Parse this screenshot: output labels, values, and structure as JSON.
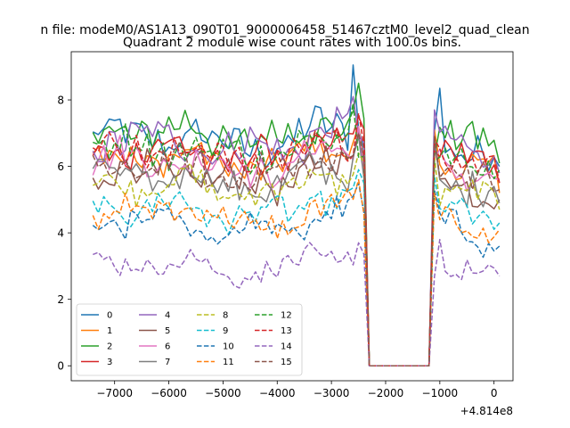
{
  "figure": {
    "suptitle": "n file: modeM0/AS1A13_090T01_9000006458_51467cztM0_level2_quad_clean"
  },
  "chart_data": {
    "type": "line",
    "title": "Quadrant 2 module wise count rates with 100.0s bins.",
    "xlabel": "",
    "ylabel": "",
    "x_offset_label": "+4.814e8",
    "xlim": [
      -7800,
      350
    ],
    "ylim": [
      -0.45,
      9.45
    ],
    "x_ticks": [
      -7000,
      -6000,
      -5000,
      -4000,
      -3000,
      -2000,
      -1000,
      0
    ],
    "x_tick_labels": [
      "−7000",
      "−6000",
      "−5000",
      "−4000",
      "−3000",
      "−2000",
      "−1000",
      "0"
    ],
    "y_ticks": [
      0,
      2,
      4,
      6,
      8
    ],
    "y_tick_labels": [
      "0",
      "2",
      "4",
      "6",
      "8"
    ],
    "grid": false,
    "legend": {
      "placement": "lower-left",
      "columns": 4
    },
    "x_start": -7400,
    "x_step": 100,
    "n_points": 76,
    "gap": {
      "start_index": 51,
      "end_index": 62,
      "value": 0
    },
    "series": [
      {
        "name": "0",
        "color": "#1f77b4",
        "style": "solid",
        "level": 6.9,
        "amp": 0.45,
        "spike_index": 48,
        "spike_value": 9.05,
        "secondary_spike_index": 64,
        "secondary_spike_value": 8.35,
        "end_value": 6.0
      },
      {
        "name": "1",
        "color": "#ff7f0e",
        "style": "solid",
        "level": 6.3,
        "amp": 0.35,
        "spike_index": 49,
        "spike_value": 7.2,
        "secondary_spike_index": 63,
        "secondary_spike_value": 7.1,
        "end_value": 5.2
      },
      {
        "name": "2",
        "color": "#2ca02c",
        "style": "solid",
        "level": 7.1,
        "amp": 0.5,
        "spike_index": 49,
        "spike_value": 8.5,
        "secondary_spike_index": 62,
        "secondary_spike_value": 7.85,
        "end_value": 6.1
      },
      {
        "name": "3",
        "color": "#d62728",
        "style": "solid",
        "level": 6.5,
        "amp": 0.4,
        "spike_index": 49,
        "spike_value": 7.5,
        "secondary_spike_index": 62,
        "secondary_spike_value": 7.6,
        "end_value": 5.5
      },
      {
        "name": "4",
        "color": "#9467bd",
        "style": "solid",
        "level": 6.8,
        "amp": 0.5,
        "spike_index": 48,
        "spike_value": 8.1,
        "secondary_spike_index": 63,
        "secondary_spike_value": 7.7,
        "end_value": 5.8
      },
      {
        "name": "5",
        "color": "#8c564b",
        "style": "solid",
        "level": 5.8,
        "amp": 0.4,
        "spike_index": 49,
        "spike_value": 7.0,
        "secondary_spike_index": 63,
        "secondary_spike_value": 6.9,
        "end_value": 5.0
      },
      {
        "name": "6",
        "color": "#e377c2",
        "style": "solid",
        "level": 6.2,
        "amp": 0.4,
        "spike_index": 49,
        "spike_value": 7.2,
        "secondary_spike_index": 62,
        "secondary_spike_value": 7.0,
        "end_value": 5.6
      },
      {
        "name": "7",
        "color": "#7f7f7f",
        "style": "solid",
        "level": 5.7,
        "amp": 0.45,
        "spike_index": 49,
        "spike_value": 6.9,
        "secondary_spike_index": 63,
        "secondary_spike_value": 6.8,
        "end_value": 4.9
      },
      {
        "name": "8",
        "color": "#bcbd22",
        "style": "dashed",
        "level": 5.5,
        "amp": 0.35,
        "spike_index": 49,
        "spike_value": 6.4,
        "secondary_spike_index": 63,
        "secondary_spike_value": 6.3,
        "end_value": 4.7
      },
      {
        "name": "9",
        "color": "#17becf",
        "style": "dashed",
        "level": 4.8,
        "amp": 0.35,
        "spike_index": 49,
        "spike_value": 5.9,
        "secondary_spike_index": 63,
        "secondary_spike_value": 5.7,
        "end_value": 4.3
      },
      {
        "name": "10",
        "color": "#1f77b4",
        "style": "dashed",
        "level": 4.3,
        "amp": 0.35,
        "spike_index": 49,
        "spike_value": 5.5,
        "secondary_spike_index": 63,
        "secondary_spike_value": 5.3,
        "end_value": 3.6
      },
      {
        "name": "11",
        "color": "#ff7f0e",
        "style": "dashed",
        "level": 4.6,
        "amp": 0.4,
        "spike_index": 49,
        "spike_value": 5.6,
        "secondary_spike_index": 63,
        "secondary_spike_value": 5.2,
        "end_value": 4.1
      },
      {
        "name": "12",
        "color": "#2ca02c",
        "style": "dashed",
        "level": 6.6,
        "amp": 0.45,
        "spike_index": 48,
        "spike_value": 7.9,
        "secondary_spike_index": 62,
        "secondary_spike_value": 7.8,
        "end_value": 5.9
      },
      {
        "name": "13",
        "color": "#d62728",
        "style": "dashed",
        "level": 6.5,
        "amp": 0.4,
        "spike_index": 49,
        "spike_value": 7.6,
        "secondary_spike_index": 62,
        "secondary_spike_value": 7.4,
        "end_value": 5.5
      },
      {
        "name": "14",
        "color": "#9467bd",
        "style": "dashed",
        "level": 3.1,
        "amp": 0.25,
        "spike_index": 49,
        "spike_value": 3.7,
        "secondary_spike_index": 64,
        "secondary_spike_value": 3.8,
        "end_value": 2.7
      },
      {
        "name": "15",
        "color": "#8c564b",
        "style": "dashed",
        "level": 6.0,
        "amp": 0.4,
        "spike_index": 49,
        "spike_value": 7.0,
        "secondary_spike_index": 63,
        "secondary_spike_value": 6.9,
        "end_value": 5.3
      }
    ]
  }
}
